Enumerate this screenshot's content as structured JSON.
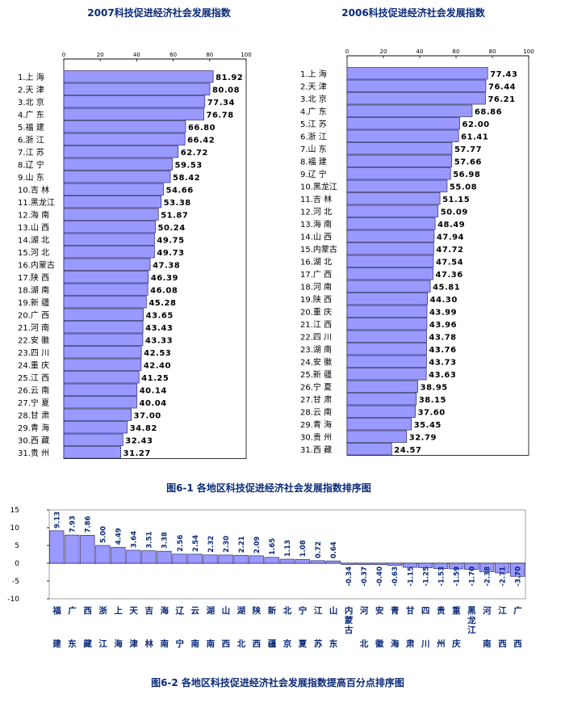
{
  "colors": {
    "bar": "#9999ff",
    "bar_stroke": "#2b2b6b",
    "title": "#0b2a7a"
  },
  "figure1_caption": "图6-1   各地区科技促进经济社会发展指数排序图",
  "figure2_caption": "图6-2   各地区科技促进经济社会发展指数提高百分点排序图",
  "chart_data": [
    {
      "type": "bar",
      "orientation": "horizontal",
      "title": "2007科技促进经济社会发展指数",
      "xlim": [
        0,
        100
      ],
      "ticks": [
        "0",
        "20",
        "40",
        "60",
        "80",
        "100"
      ],
      "categories": [
        "1.上 海",
        "2.天 津",
        "3.北 京",
        "4.广 东",
        "5.福 建",
        "6.浙 江",
        "7.江 苏",
        "8.辽 宁",
        "9.山 东",
        "10.吉 林",
        "11.黑龙江",
        "12.海 南",
        "13.山 西",
        "14.湖 北",
        "15.河 北",
        "16.内蒙古",
        "17.陕 西",
        "18.湖 南",
        "19.新 疆",
        "20.广 西",
        "21.河 南",
        "22.安 徽",
        "23.四 川",
        "24.重 庆",
        "25.江 西",
        "26.云 南",
        "27.宁 夏",
        "28.甘 肃",
        "29.青 海",
        "30.西 藏",
        "31.贵 州"
      ],
      "values": [
        81.92,
        80.08,
        77.34,
        76.78,
        66.8,
        66.42,
        62.72,
        59.53,
        58.42,
        54.66,
        53.38,
        51.87,
        50.24,
        49.75,
        49.73,
        47.38,
        46.39,
        46.08,
        45.28,
        43.65,
        43.43,
        43.33,
        42.53,
        42.4,
        41.25,
        40.14,
        40.04,
        37.0,
        34.82,
        32.43,
        31.27
      ],
      "value_labels": [
        "81.92",
        "80.08",
        "77.34",
        "76.78",
        "66.80",
        "66.42",
        "62.72",
        "59.53",
        "58.42",
        "54.66",
        "53.38",
        "51.87",
        "50.24",
        "49.75",
        "49.73",
        "47.38",
        "46.39",
        "46.08",
        "45.28",
        "43.65",
        "43.43",
        "43.33",
        "42.53",
        "42.40",
        "41.25",
        "40.14",
        "40.04",
        "37.00",
        "34.82",
        "32.43",
        "31.27"
      ]
    },
    {
      "type": "bar",
      "orientation": "horizontal",
      "title": "2006科技促进经济社会发展指数",
      "xlim": [
        0,
        100
      ],
      "ticks": [
        "0",
        "20",
        "40",
        "60",
        "80",
        "100"
      ],
      "categories": [
        "1.上 海",
        "2.天 津",
        "3.北 京",
        "4.广 东",
        "5.江 苏",
        "6.浙 江",
        "7.山 东",
        "8.福 建",
        "9.辽 宁",
        "10.黑龙江",
        "11.吉 林",
        "12.河 北",
        "13.海 南",
        "14.山 西",
        "15.内蒙古",
        "16.湖 北",
        "17.广 西",
        "18.河 南",
        "19.陕 西",
        "20.重 庆",
        "21.江 西",
        "22.四 川",
        "23.湖 南",
        "24.安 徽",
        "25.新 疆",
        "26.宁 夏",
        "27.甘 肃",
        "28.云 南",
        "29.青 海",
        "30.贵 州",
        "31.西 藏"
      ],
      "values": [
        77.43,
        76.44,
        76.21,
        68.86,
        62.0,
        61.41,
        57.77,
        57.66,
        56.98,
        55.08,
        51.15,
        50.09,
        48.49,
        47.94,
        47.72,
        47.54,
        47.36,
        45.81,
        44.3,
        43.99,
        43.96,
        43.78,
        43.76,
        43.73,
        43.63,
        38.95,
        38.15,
        37.6,
        35.45,
        32.79,
        24.57
      ],
      "value_labels": [
        "77.43",
        "76.44",
        "76.21",
        "68.86",
        "62.00",
        "61.41",
        "57.77",
        "57.66",
        "56.98",
        "55.08",
        "51.15",
        "50.09",
        "48.49",
        "47.94",
        "47.72",
        "47.54",
        "47.36",
        "45.81",
        "44.30",
        "43.99",
        "43.96",
        "43.78",
        "43.76",
        "43.73",
        "43.63",
        "38.95",
        "38.15",
        "37.60",
        "35.45",
        "32.79",
        "24.57"
      ]
    },
    {
      "type": "bar",
      "orientation": "vertical",
      "ylim": [
        -10,
        15
      ],
      "yticks": [
        "15",
        "10",
        "5",
        "0",
        "-5",
        "-10"
      ],
      "categories": [
        {
          "top": "福",
          "bottom": "建"
        },
        {
          "top": "广",
          "bottom": "东"
        },
        {
          "top": "西",
          "bottom": "藏"
        },
        {
          "top": "浙",
          "bottom": "江"
        },
        {
          "top": "上",
          "bottom": "海"
        },
        {
          "top": "天",
          "bottom": "津"
        },
        {
          "top": "吉",
          "bottom": "林"
        },
        {
          "top": "海",
          "bottom": "南"
        },
        {
          "top": "辽",
          "bottom": "宁"
        },
        {
          "top": "云",
          "bottom": "南"
        },
        {
          "top": "湖",
          "bottom": "南"
        },
        {
          "top": "山",
          "bottom": "西"
        },
        {
          "top": "湖",
          "bottom": "北"
        },
        {
          "top": "陕",
          "bottom": "西"
        },
        {
          "top": "新",
          "bottom": "疆"
        },
        {
          "top": "北",
          "bottom": "京"
        },
        {
          "top": "宁",
          "bottom": "夏"
        },
        {
          "top": "江",
          "bottom": "苏"
        },
        {
          "top": "山",
          "bottom": "东"
        },
        {
          "top": "内蒙古",
          "bottom": ""
        },
        {
          "top": "河",
          "bottom": "北"
        },
        {
          "top": "安",
          "bottom": "徽"
        },
        {
          "top": "青",
          "bottom": "海"
        },
        {
          "top": "甘",
          "bottom": "肃"
        },
        {
          "top": "四",
          "bottom": "川"
        },
        {
          "top": "贵",
          "bottom": "州"
        },
        {
          "top": "重",
          "bottom": "庆"
        },
        {
          "top": "黑龙江",
          "bottom": ""
        },
        {
          "top": "河",
          "bottom": "南"
        },
        {
          "top": "江",
          "bottom": "西"
        },
        {
          "top": "广",
          "bottom": "西"
        }
      ],
      "values": [
        9.13,
        7.93,
        7.86,
        5.0,
        4.49,
        3.64,
        3.51,
        3.38,
        2.56,
        2.54,
        2.32,
        2.3,
        2.21,
        2.09,
        1.65,
        1.13,
        1.08,
        0.72,
        0.64,
        -0.34,
        -0.37,
        -0.4,
        -0.63,
        -1.15,
        -1.25,
        -1.53,
        -1.59,
        -1.7,
        -2.38,
        -2.71,
        -3.7
      ],
      "value_labels": [
        "9.13",
        "7.93",
        "7.86",
        "5.00",
        "4.49",
        "3.64",
        "3.51",
        "3.38",
        "2.56",
        "2.54",
        "2.32",
        "2.30",
        "2.21",
        "2.09",
        "1.65",
        "1.13",
        "1.08",
        "0.72",
        "0.64",
        "-0.34",
        "-0.37",
        "-0.40",
        "-0.63",
        "-1.15",
        "-1.25",
        "-1.53",
        "-1.59",
        "-1.70",
        "-2.38",
        "-2.71",
        "-3.70"
      ]
    }
  ]
}
